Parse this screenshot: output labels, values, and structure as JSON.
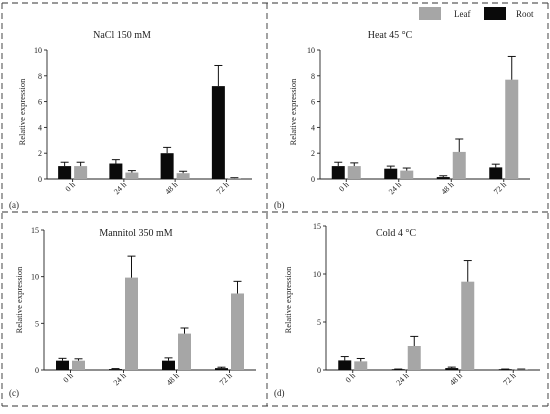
{
  "legend": {
    "leaf": "Leaf",
    "root": "Root"
  },
  "colors": {
    "leaf": "#a6a6a6",
    "root": "#0a0a0a"
  },
  "chart_data": [
    {
      "type": "bar",
      "panel": "(a)",
      "title": "NaCl 150 mM",
      "ylabel": "Relative expression",
      "ylim": [
        0,
        10
      ],
      "yticks": [
        0,
        2,
        4,
        6,
        8,
        10
      ],
      "categories": [
        "0 h",
        "24 h",
        "48 h",
        "72 h"
      ],
      "series": [
        {
          "name": "Root",
          "values": [
            1.0,
            1.2,
            2.0,
            7.2
          ],
          "errors": [
            0.3,
            0.3,
            0.45,
            1.6
          ]
        },
        {
          "name": "Leaf",
          "values": [
            1.0,
            0.5,
            0.45,
            0.05
          ],
          "errors": [
            0.3,
            0.15,
            0.15,
            0.05
          ]
        }
      ]
    },
    {
      "type": "bar",
      "panel": "(b)",
      "title": "Heat 45 °C",
      "ylabel": "Relative expression",
      "ylim": [
        0,
        10
      ],
      "yticks": [
        0,
        2,
        4,
        6,
        8,
        10
      ],
      "categories": [
        "0 h",
        "24 h",
        "48 h",
        "72 h"
      ],
      "series": [
        {
          "name": "Root",
          "values": [
            1.0,
            0.8,
            0.15,
            0.9
          ],
          "errors": [
            0.3,
            0.2,
            0.1,
            0.25
          ]
        },
        {
          "name": "Leaf",
          "values": [
            1.0,
            0.65,
            2.1,
            7.7
          ],
          "errors": [
            0.25,
            0.2,
            1.0,
            1.8
          ]
        }
      ]
    },
    {
      "type": "bar",
      "panel": "(c)",
      "title": "Mannitol 350 mM",
      "ylabel": "Relative expression",
      "ylim": [
        0,
        15
      ],
      "yticks": [
        0,
        5,
        10,
        15
      ],
      "categories": [
        "0 h",
        "24 h",
        "48 h",
        "72 h"
      ],
      "series": [
        {
          "name": "Root",
          "values": [
            1.0,
            0.1,
            1.0,
            0.2
          ],
          "errors": [
            0.25,
            0.05,
            0.3,
            0.1
          ]
        },
        {
          "name": "Leaf",
          "values": [
            1.0,
            9.9,
            3.9,
            8.2
          ],
          "errors": [
            0.2,
            2.3,
            0.6,
            1.3
          ]
        }
      ]
    },
    {
      "type": "bar",
      "panel": "(d)",
      "title": "Cold 4 °C",
      "ylabel": "Relative expression",
      "ylim": [
        0,
        15
      ],
      "yticks": [
        0,
        5,
        10,
        15
      ],
      "categories": [
        "0 h",
        "24 h",
        "48 h",
        "72 h"
      ],
      "series": [
        {
          "name": "Root",
          "values": [
            1.0,
            0.05,
            0.2,
            0.05
          ],
          "errors": [
            0.4,
            0.05,
            0.1,
            0.05
          ]
        },
        {
          "name": "Leaf",
          "values": [
            0.9,
            2.5,
            9.2,
            0.05
          ],
          "errors": [
            0.3,
            1.0,
            2.2,
            0.05
          ]
        }
      ]
    }
  ]
}
